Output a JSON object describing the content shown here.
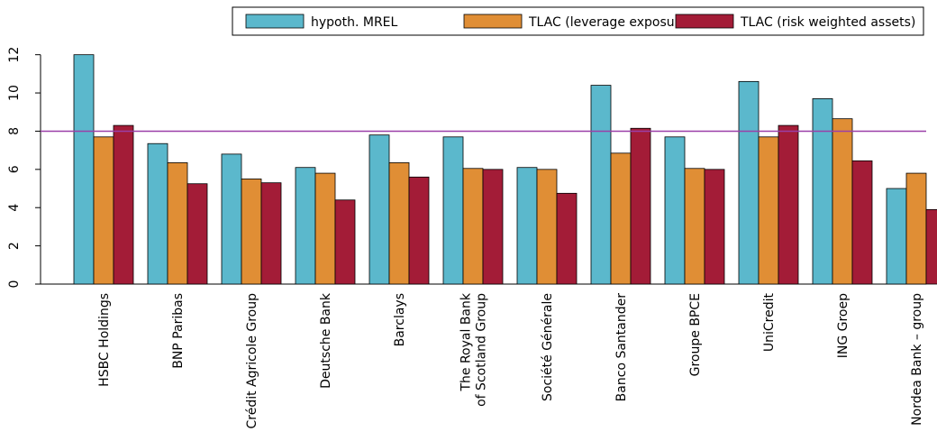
{
  "chart_data": {
    "type": "bar",
    "categories": [
      "HSBC Holdings",
      "BNP Paribas",
      "Crédit Agricole Group",
      "Deutsche Bank",
      "Barclays",
      "The Royal Bank\nof Scotland Group",
      "Société Générale",
      "Banco Santander",
      "Groupe BPCE",
      "UniCredit",
      "ING Groep",
      "Nordea Bank – group"
    ],
    "series": [
      {
        "name": "hypoth. MREL",
        "color": "#5bb8cc",
        "values": [
          12.0,
          7.35,
          6.8,
          6.1,
          7.8,
          7.7,
          6.1,
          10.4,
          7.7,
          10.6,
          9.7,
          5.0
        ]
      },
      {
        "name": "TLAC (leverage exposure)",
        "color": "#e08e35",
        "values": [
          7.7,
          6.35,
          5.5,
          5.8,
          6.35,
          6.05,
          6.0,
          6.85,
          6.05,
          7.7,
          8.65,
          5.8
        ]
      },
      {
        "name": "TLAC (risk weighted assets)",
        "color": "#a31c37",
        "values": [
          8.3,
          5.25,
          5.3,
          4.4,
          5.6,
          6.0,
          4.75,
          8.15,
          6.0,
          8.3,
          6.45,
          3.9
        ]
      }
    ],
    "reference_line": 8,
    "reference_color": "#9b3fa8",
    "ylim": [
      0,
      13.4
    ],
    "yticks": [
      0,
      2,
      4,
      6,
      8,
      10,
      12
    ],
    "legend": "top-right"
  }
}
